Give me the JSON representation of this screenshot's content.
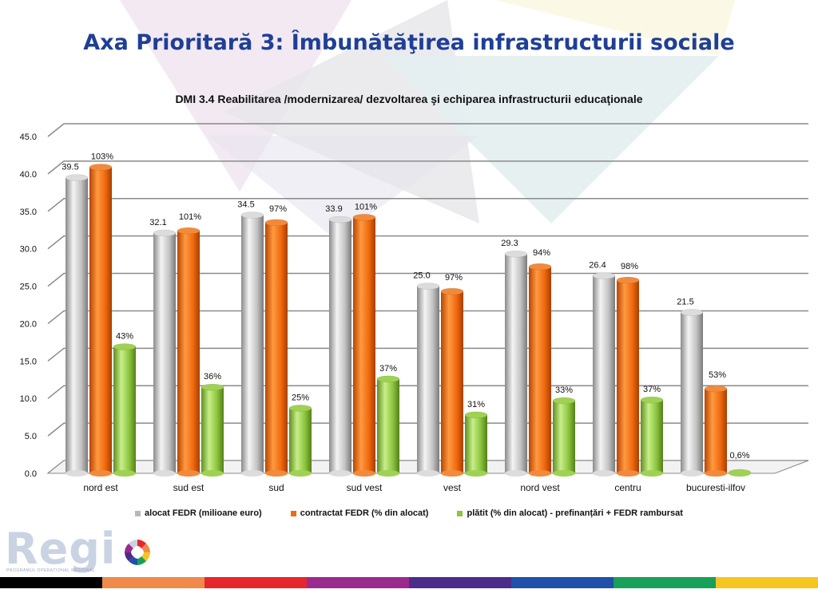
{
  "page": {
    "title": "Axa Prioritară 3: Îmbunătăţirea infrastructurii sociale"
  },
  "logo": {
    "text": "Regi",
    "subtitle": "PROGRAMUL OPERAȚIONAL REGIONAL"
  },
  "strip_colors": [
    "#000000",
    "#f08a4b",
    "#e8262d",
    "#9b2a8f",
    "#4c2c8a",
    "#2050a8",
    "#16a05a",
    "#f7c520"
  ],
  "colors": {
    "alocat": "#c0c0c0",
    "contractat": "#f06a10",
    "platit": "#8cc63f",
    "title": "#1f3f97"
  },
  "chart_data": {
    "type": "bar",
    "title": "DMI 3.4 Reabilitarea /modernizarea/ dezvoltarea şi echiparea infrastructurii educaţionale",
    "categories": [
      "nord est",
      "sud est",
      "sud",
      "sud vest",
      "vest",
      "nord vest",
      "centru",
      "bucuresti-ilfov"
    ],
    "ylim": [
      0,
      45
    ],
    "yticks": [
      "0.0",
      "5.0",
      "10.0",
      "15.0",
      "20.0",
      "25.0",
      "30.0",
      "35.0",
      "40.0",
      "45.0"
    ],
    "grid": true,
    "legend_position": "bottom",
    "series": [
      {
        "name": "alocat FEDR (milioane euro)",
        "values": [
          39.5,
          32.1,
          34.5,
          33.9,
          25.0,
          29.3,
          26.4,
          21.5
        ],
        "labels": [
          "39.5",
          "32.1",
          "34.5",
          "33.9",
          "25.0",
          "29.3",
          "26.4",
          "21.5"
        ]
      },
      {
        "name": "contractat FEDR (% din alocat)",
        "values": [
          40.9,
          32.4,
          33.5,
          34.2,
          24.3,
          27.6,
          25.8,
          11.3
        ],
        "labels": [
          "103%",
          "101%",
          "97%",
          "101%",
          "97%",
          "94%",
          "98%",
          "53%"
        ]
      },
      {
        "name": "plătit (% din alocat) - prefinanțări + FEDR rambursat",
        "values": [
          16.9,
          11.5,
          8.7,
          12.6,
          7.8,
          9.7,
          9.8,
          0.1
        ],
        "labels": [
          "43%",
          "36%",
          "25%",
          "37%",
          "31%",
          "33%",
          "37%",
          "0,6%"
        ]
      }
    ]
  }
}
